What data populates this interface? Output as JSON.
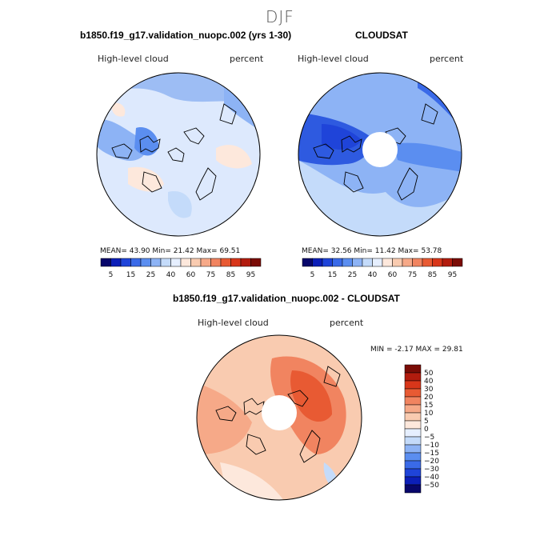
{
  "season": "DJF",
  "panels": {
    "model": {
      "title": "b1850.f19_g17.validation_nuopc.002 (yrs 1-30)",
      "variable": "High-level cloud",
      "units": "percent",
      "mean_label": "MEAN=",
      "mean": "43.90",
      "min_label": "Min=",
      "min": "21.42",
      "max_label": "Max=",
      "max": "69.51"
    },
    "obs": {
      "title": "CLOUDSAT",
      "variable": "High-level cloud",
      "units": "percent",
      "mean_label": "MEAN=",
      "mean": "32.56",
      "min_label": "Min=",
      "min": "11.42",
      "max_label": "Max=",
      "max": "53.78"
    },
    "diff": {
      "title": "b1850.f19_g17.validation_nuopc.002 - CLOUDSAT",
      "variable": "High-level cloud",
      "units": "percent",
      "stats_line": "MIN =   -2.17 MAX =   29.81"
    }
  },
  "colors": {
    "abs_scale": [
      "#08076b",
      "#0c1fb8",
      "#1f44d9",
      "#3a6ae8",
      "#5b8ef0",
      "#8db3f5",
      "#c4dbfa",
      "#e6efff",
      "#fde8dc",
      "#f9cbb0",
      "#f6a988",
      "#f18460",
      "#e85a33",
      "#d8361a",
      "#b21c0e",
      "#7a0c06"
    ],
    "diff_scale": [
      "#08076b",
      "#0c1fb8",
      "#1f44d9",
      "#3a6ae8",
      "#5b8ef0",
      "#8db3f5",
      "#c4dbfa",
      "#e6efff",
      "#fde8dc",
      "#f9cbb0",
      "#f6a988",
      "#f18460",
      "#e85a33",
      "#d8361a",
      "#b21c0e",
      "#7a0c06"
    ],
    "coast": "#000000"
  },
  "chart_data": [
    {
      "type": "heatmap",
      "projection": "north polar stereographic",
      "title": "b1850.f19_g17.validation_nuopc.002 (yrs 1-30)",
      "field": "High-level cloud",
      "units": "percent",
      "mean": 43.9,
      "min": 21.42,
      "max": 69.51,
      "colorbar_levels": [
        5,
        10,
        15,
        20,
        25,
        30,
        40,
        50,
        60,
        70,
        75,
        80,
        85,
        90,
        95
      ],
      "colorbar_ticks": [
        "5",
        "15",
        "25",
        "40",
        "60",
        "75",
        "85",
        "95"
      ]
    },
    {
      "type": "heatmap",
      "projection": "north polar stereographic",
      "title": "CLOUDSAT",
      "field": "High-level cloud",
      "units": "percent",
      "mean": 32.56,
      "min": 11.42,
      "max": 53.78,
      "polar_gap": true,
      "colorbar_levels": [
        5,
        10,
        15,
        20,
        25,
        30,
        40,
        50,
        60,
        70,
        75,
        80,
        85,
        90,
        95
      ],
      "colorbar_ticks": [
        "5",
        "15",
        "25",
        "40",
        "60",
        "75",
        "85",
        "95"
      ]
    },
    {
      "type": "heatmap",
      "projection": "north polar stereographic",
      "title": "b1850.f19_g17.validation_nuopc.002 - CLOUDSAT",
      "field": "High-level cloud",
      "units": "percent",
      "min": -2.17,
      "max": 29.81,
      "polar_gap": true,
      "colorbar_levels": [
        -50,
        -40,
        -30,
        -20,
        -15,
        -10,
        -5,
        0,
        5,
        10,
        15,
        20,
        30,
        40,
        50
      ],
      "colorbar_ticks": [
        "50",
        "40",
        "30",
        "20",
        "15",
        "10",
        "5",
        "0",
        "−5",
        "−10",
        "−15",
        "−20",
        "−30",
        "−40",
        "−50"
      ]
    }
  ]
}
